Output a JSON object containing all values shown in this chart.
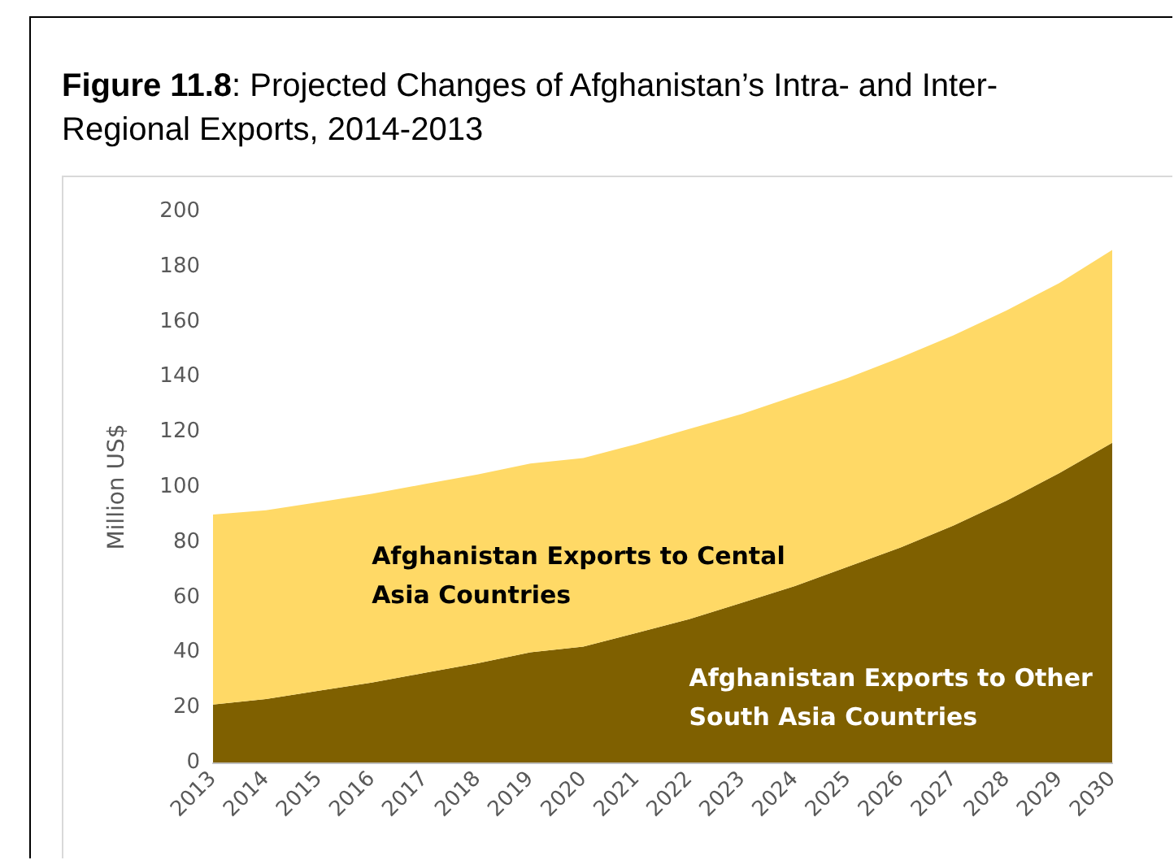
{
  "chart_data": {
    "type": "area",
    "stacked": true,
    "title": "Figure 11.8: Projected Changes of Afghanistan’s Intra- and Inter-Regional Exports, 2014-2013",
    "ylabel": "Million US$",
    "categories": [
      "2013",
      "2014",
      "2015",
      "2016",
      "2017",
      "2018",
      "2019",
      "2020",
      "2021",
      "2022",
      "2023",
      "2024",
      "2025",
      "2026",
      "2027",
      "2028",
      "2029",
      "2030"
    ],
    "series": [
      {
        "name": "Afghanistan Exports to Other South Asia Countries",
        "color": "#7f6000",
        "values": [
          21,
          23,
          26,
          29,
          32.5,
          36,
          40,
          42,
          47,
          52,
          58,
          64,
          71,
          78,
          86,
          95,
          105,
          116
        ]
      },
      {
        "name": "Afghanistan Exports to Cental Asia Countries",
        "color": "#ffd966",
        "values": [
          69,
          68.5,
          68.5,
          68.5,
          68.5,
          68.5,
          68.5,
          68.5,
          68.5,
          69,
          68.5,
          69,
          68.5,
          69,
          69,
          69,
          69,
          70
        ]
      }
    ],
    "ylim": [
      0,
      200
    ],
    "yticks": [
      0,
      20,
      40,
      60,
      80,
      100,
      120,
      140,
      160,
      180,
      200
    ],
    "grid": false,
    "legend": false
  }
}
